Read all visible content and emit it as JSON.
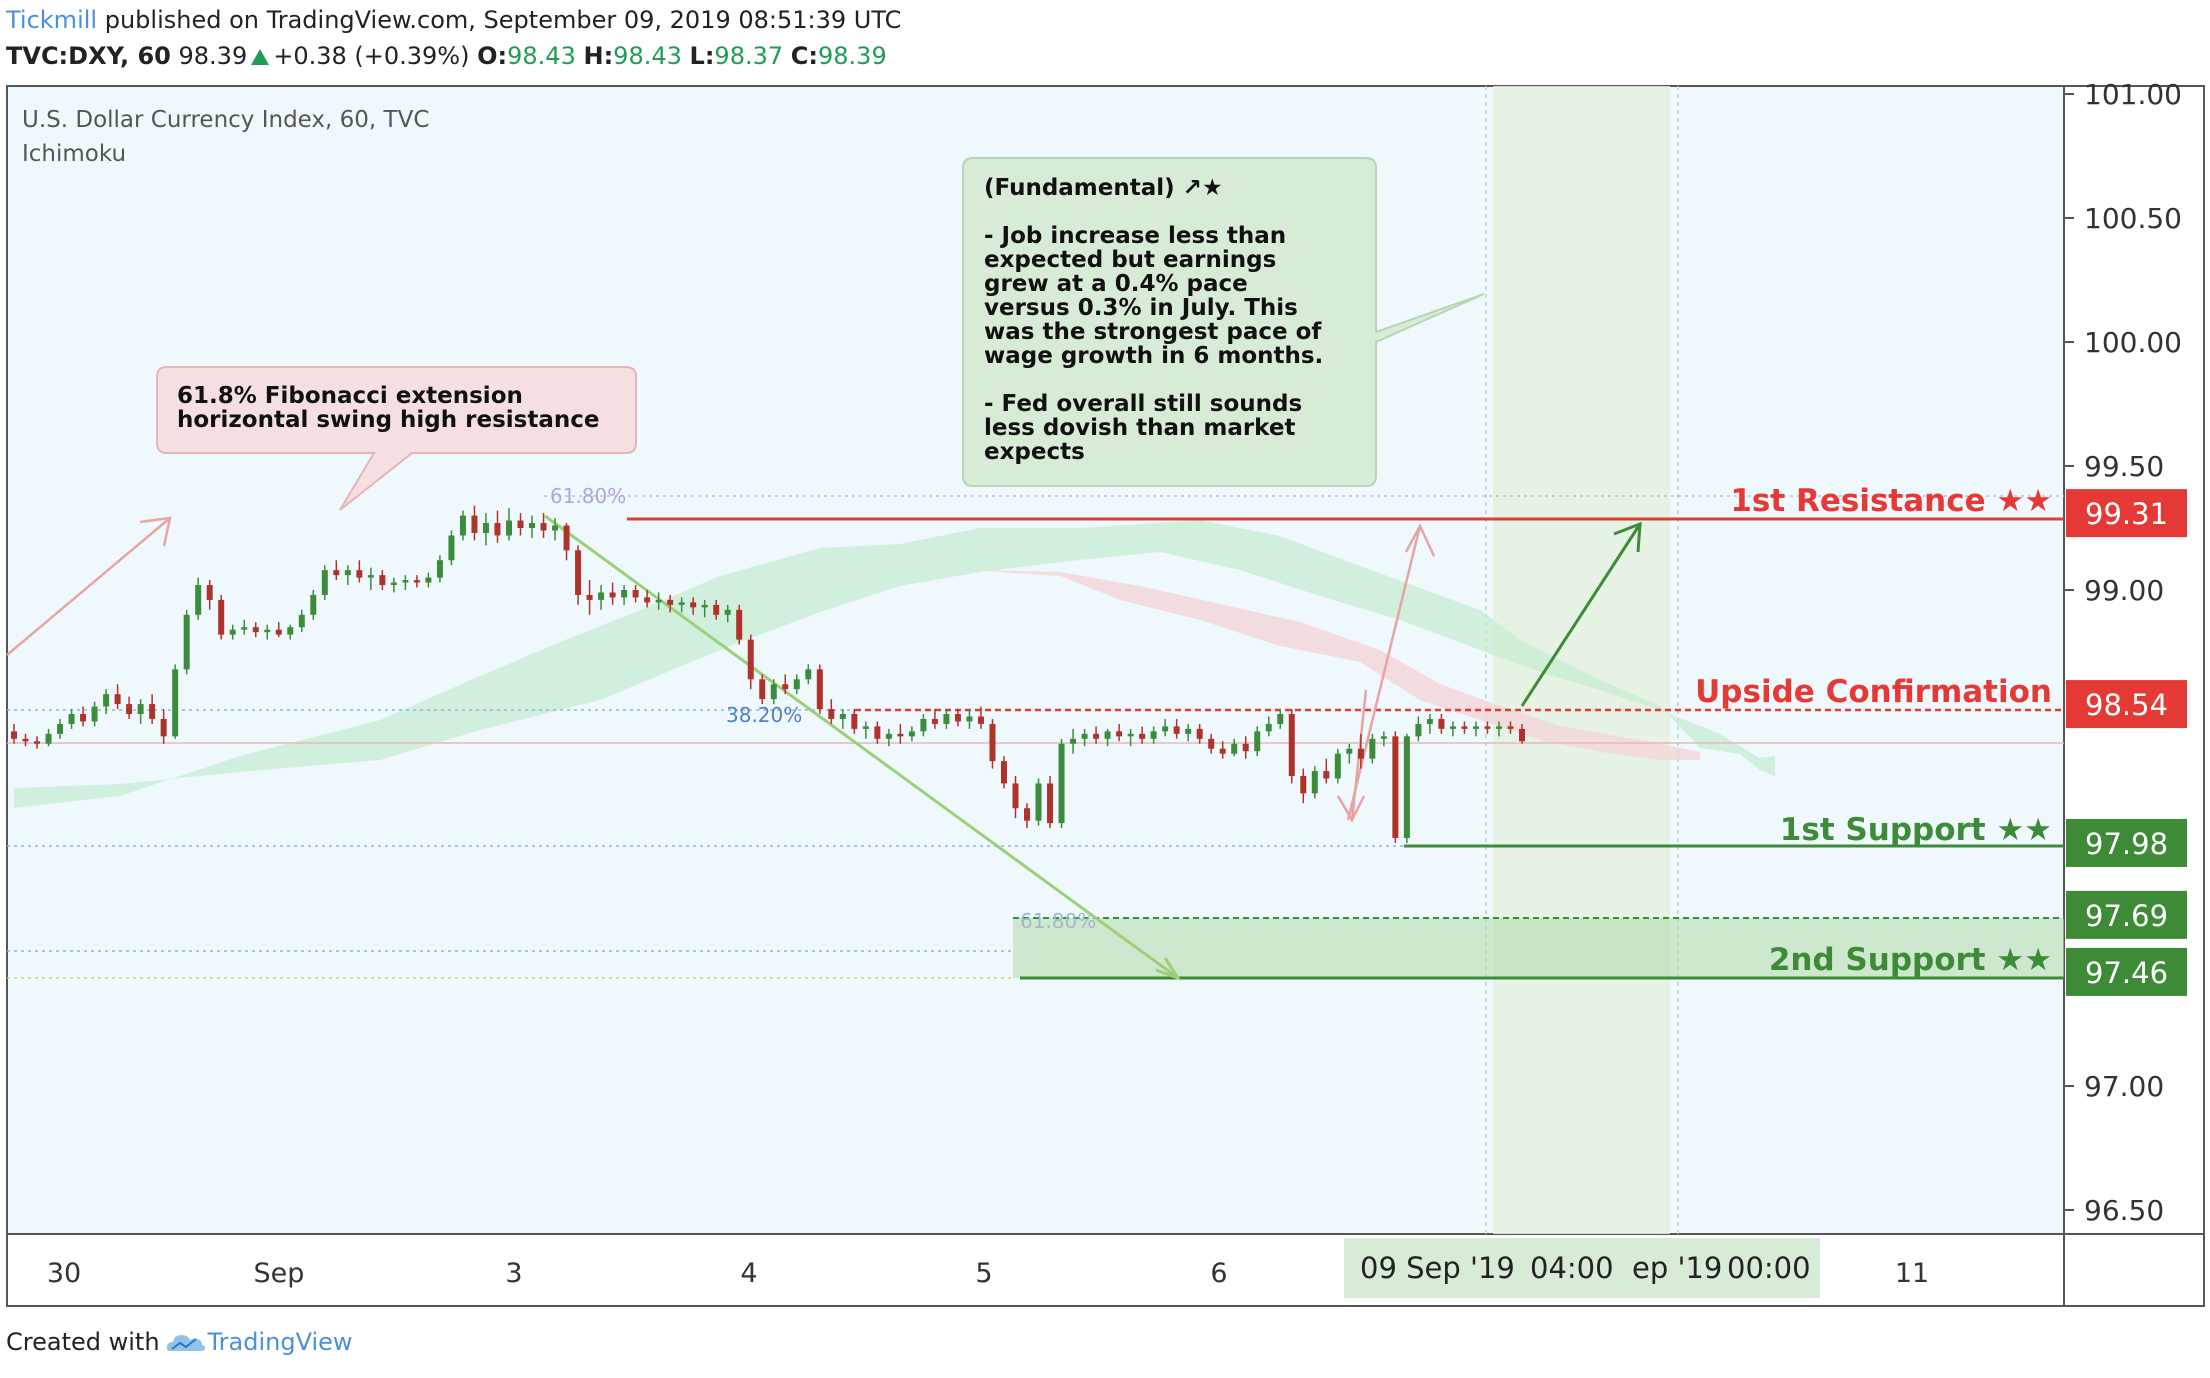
{
  "header": {
    "publisher": "Tickmill",
    "published_text": "published on TradingView.com, September 09, 2019 08:51:39 UTC",
    "symbol": "TVC:DXY, 60",
    "last": "98.39",
    "change": "+0.38 (+0.39%)",
    "o_label": "O:",
    "o_value": "98.43",
    "h_label": "H:",
    "h_value": "98.43",
    "l_label": "L:",
    "l_value": "98.37",
    "c_label": "C:",
    "c_value": "98.39"
  },
  "legend": {
    "title": "U.S. Dollar Currency Index, 60, TVC",
    "indicator": "Ichimoku"
  },
  "footer": {
    "created_with": "Created with",
    "brand": "TradingView"
  },
  "colors": {
    "background": "#eff9fd",
    "up_candle": "#3c8c3c",
    "down_candle": "#b0332b",
    "resistance": "#e53935",
    "support": "#3d8b37",
    "fib_line": "#9ccf78",
    "cloud_green": "#c5ecd2",
    "cloud_red": "#f4d5d8"
  },
  "chart_data": {
    "type": "candlestick",
    "title": "U.S. Dollar Currency Index, 60, TVC",
    "y_axis": {
      "min": 96.5,
      "max": 101.0,
      "ticks": [
        "101.00",
        "100.50",
        "100.00",
        "99.50",
        "99.00",
        "97.00",
        "96.50"
      ],
      "side": "right"
    },
    "x_axis": {
      "ticks": [
        "30",
        "Sep",
        "3",
        "4",
        "5",
        "6",
        "11"
      ],
      "cursor_labels": [
        "09 Sep '19",
        "04:00",
        "ep '19",
        "00:00"
      ]
    },
    "price_tags": [
      {
        "value": 99.31,
        "text": "99.31",
        "color": "#e53935"
      },
      {
        "value": 98.54,
        "text": "98.54",
        "color": "#e53935"
      },
      {
        "value": 97.98,
        "text": "97.98",
        "color": "#3d8b37"
      },
      {
        "value": 97.69,
        "text": "97.69",
        "color": "#3d8b37"
      },
      {
        "value": 97.46,
        "text": "97.46",
        "color": "#3d8b37"
      }
    ],
    "levels": [
      {
        "label": "1st Resistance ★★",
        "value": 99.31,
        "color": "#e53935"
      },
      {
        "label": "Upside Confirmation",
        "value": 98.54,
        "color": "#e53935"
      },
      {
        "label": "1st Support ★★",
        "value": 97.98,
        "color": "#3d8b37"
      },
      {
        "label": "2nd Support ★★",
        "value": 97.46,
        "color": "#3d8b37"
      }
    ],
    "fib_labels": [
      "61.80%",
      "38.20%",
      "61.80%"
    ],
    "callouts": {
      "fib": [
        "61.8% Fibonacci extension",
        "horizontal swing high resistance"
      ],
      "fundamental": [
        "(Fundamental) ↗★",
        "",
        "- Job increase less than",
        "expected but earnings",
        "grew at a 0.4% pace",
        "versus 0.3% in July. This",
        "was the strongest pace of",
        "wage growth in 6 months.",
        "",
        "- Fed overall still sounds",
        "less dovish than market",
        "expects"
      ]
    },
    "candles": [
      [
        98.43,
        98.46,
        98.38,
        98.4
      ],
      [
        98.4,
        98.42,
        98.37,
        98.39
      ],
      [
        98.39,
        98.41,
        98.36,
        98.38
      ],
      [
        98.38,
        98.44,
        98.37,
        98.42
      ],
      [
        98.42,
        98.48,
        98.4,
        98.46
      ],
      [
        98.46,
        98.52,
        98.44,
        98.5
      ],
      [
        98.5,
        98.53,
        98.45,
        98.47
      ],
      [
        98.47,
        98.55,
        98.45,
        98.53
      ],
      [
        98.53,
        98.6,
        98.5,
        98.58
      ],
      [
        98.58,
        98.62,
        98.52,
        98.54
      ],
      [
        98.54,
        98.57,
        98.48,
        98.5
      ],
      [
        98.5,
        98.56,
        98.46,
        98.54
      ],
      [
        98.54,
        98.58,
        98.46,
        98.48
      ],
      [
        98.48,
        98.52,
        98.38,
        98.41
      ],
      [
        98.41,
        98.7,
        98.4,
        98.68
      ],
      [
        98.68,
        98.92,
        98.66,
        98.9
      ],
      [
        98.9,
        99.05,
        98.88,
        99.02
      ],
      [
        99.02,
        99.04,
        98.92,
        98.96
      ],
      [
        98.96,
        98.98,
        98.8,
        98.82
      ],
      [
        98.82,
        98.86,
        98.8,
        98.84
      ],
      [
        98.84,
        98.88,
        98.82,
        98.85
      ],
      [
        98.85,
        98.87,
        98.81,
        98.83
      ],
      [
        98.83,
        98.86,
        98.8,
        98.84
      ],
      [
        98.84,
        98.87,
        98.81,
        98.82
      ],
      [
        98.82,
        98.86,
        98.8,
        98.85
      ],
      [
        98.85,
        98.92,
        98.83,
        98.9
      ],
      [
        98.9,
        99.0,
        98.88,
        98.98
      ],
      [
        98.98,
        99.1,
        98.96,
        99.08
      ],
      [
        99.08,
        99.12,
        99.04,
        99.06
      ],
      [
        99.06,
        99.1,
        99.02,
        99.08
      ],
      [
        99.08,
        99.12,
        99.03,
        99.05
      ],
      [
        99.05,
        99.09,
        99.0,
        99.06
      ],
      [
        99.06,
        99.08,
        99.0,
        99.02
      ],
      [
        99.02,
        99.05,
        98.99,
        99.03
      ],
      [
        99.03,
        99.06,
        99.0,
        99.04
      ],
      [
        99.04,
        99.06,
        99.01,
        99.03
      ],
      [
        99.03,
        99.07,
        99.01,
        99.05
      ],
      [
        99.05,
        99.14,
        99.03,
        99.12
      ],
      [
        99.12,
        99.24,
        99.1,
        99.22
      ],
      [
        99.22,
        99.32,
        99.2,
        99.3
      ],
      [
        99.3,
        99.34,
        99.2,
        99.23
      ],
      [
        99.23,
        99.31,
        99.18,
        99.27
      ],
      [
        99.27,
        99.32,
        99.19,
        99.22
      ],
      [
        99.22,
        99.33,
        99.2,
        99.28
      ],
      [
        99.28,
        99.31,
        99.22,
        99.25
      ],
      [
        99.25,
        99.3,
        99.21,
        99.27
      ],
      [
        99.27,
        99.31,
        99.21,
        99.24
      ],
      [
        99.24,
        99.29,
        99.2,
        99.26
      ],
      [
        99.26,
        99.27,
        99.12,
        99.16
      ],
      [
        99.16,
        99.18,
        98.94,
        98.98
      ],
      [
        98.98,
        99.04,
        98.9,
        98.96
      ],
      [
        98.96,
        99.02,
        98.92,
        98.99
      ],
      [
        98.99,
        99.03,
        98.94,
        98.97
      ],
      [
        98.97,
        99.02,
        98.94,
        99.0
      ],
      [
        99.0,
        99.02,
        98.95,
        98.97
      ],
      [
        98.97,
        99.0,
        98.93,
        98.95
      ],
      [
        98.95,
        98.99,
        98.92,
        98.96
      ],
      [
        98.96,
        98.98,
        98.91,
        98.94
      ],
      [
        98.94,
        98.97,
        98.91,
        98.95
      ],
      [
        98.95,
        98.97,
        98.9,
        98.93
      ],
      [
        98.93,
        98.96,
        98.89,
        98.94
      ],
      [
        98.94,
        98.96,
        98.88,
        98.9
      ],
      [
        98.9,
        98.94,
        98.87,
        98.92
      ],
      [
        98.92,
        98.94,
        98.78,
        98.8
      ],
      [
        98.8,
        98.82,
        98.6,
        98.64
      ],
      [
        98.64,
        98.66,
        98.54,
        98.56
      ],
      [
        98.56,
        98.64,
        98.54,
        98.62
      ],
      [
        98.62,
        98.66,
        98.58,
        98.6
      ],
      [
        98.6,
        98.66,
        98.58,
        98.64
      ],
      [
        98.64,
        98.7,
        98.62,
        98.68
      ],
      [
        98.68,
        98.7,
        98.5,
        98.52
      ],
      [
        98.52,
        98.56,
        98.46,
        98.48
      ],
      [
        98.48,
        98.52,
        98.44,
        98.5
      ],
      [
        98.5,
        98.52,
        98.42,
        98.44
      ],
      [
        98.44,
        98.47,
        98.4,
        98.45
      ],
      [
        98.45,
        98.47,
        98.38,
        98.4
      ],
      [
        98.4,
        98.44,
        98.37,
        98.42
      ],
      [
        98.42,
        98.46,
        98.38,
        98.41
      ],
      [
        98.41,
        98.45,
        98.39,
        98.43
      ],
      [
        98.43,
        98.5,
        98.41,
        98.48
      ],
      [
        98.48,
        98.52,
        98.44,
        98.46
      ],
      [
        98.46,
        98.52,
        98.44,
        98.5
      ],
      [
        98.5,
        98.52,
        98.45,
        98.47
      ],
      [
        98.47,
        98.52,
        98.44,
        98.49
      ],
      [
        98.49,
        98.53,
        98.44,
        98.46
      ],
      [
        98.46,
        98.48,
        98.28,
        98.31
      ],
      [
        98.31,
        98.33,
        98.2,
        98.22
      ],
      [
        98.22,
        98.25,
        98.08,
        98.12
      ],
      [
        98.12,
        98.14,
        98.04,
        98.07
      ],
      [
        98.07,
        98.24,
        98.05,
        98.22
      ],
      [
        98.22,
        98.25,
        98.04,
        98.06
      ],
      [
        98.06,
        98.4,
        98.04,
        98.38
      ],
      [
        98.38,
        98.44,
        98.34,
        98.4
      ],
      [
        98.4,
        98.44,
        98.37,
        98.42
      ],
      [
        98.42,
        98.45,
        98.38,
        98.4
      ],
      [
        98.4,
        98.44,
        98.37,
        98.43
      ],
      [
        98.43,
        98.46,
        98.39,
        98.41
      ],
      [
        98.41,
        98.44,
        98.37,
        98.42
      ],
      [
        98.42,
        98.45,
        98.38,
        98.4
      ],
      [
        98.4,
        98.45,
        98.38,
        98.43
      ],
      [
        98.43,
        98.48,
        98.41,
        98.45
      ],
      [
        98.45,
        98.48,
        98.4,
        98.42
      ],
      [
        98.42,
        98.46,
        98.39,
        98.44
      ],
      [
        98.44,
        98.46,
        98.38,
        98.4
      ],
      [
        98.4,
        98.42,
        98.34,
        98.36
      ],
      [
        98.36,
        98.39,
        98.32,
        98.34
      ],
      [
        98.34,
        98.4,
        98.33,
        98.38
      ],
      [
        98.38,
        98.41,
        98.32,
        98.35
      ],
      [
        98.35,
        98.45,
        98.33,
        98.43
      ],
      [
        98.43,
        98.49,
        98.41,
        98.46
      ],
      [
        98.46,
        98.52,
        98.44,
        98.5
      ],
      [
        98.5,
        98.52,
        98.22,
        98.25
      ],
      [
        98.25,
        98.28,
        98.14,
        98.18
      ],
      [
        98.18,
        98.29,
        98.16,
        98.27
      ],
      [
        98.27,
        98.32,
        98.22,
        98.24
      ],
      [
        98.24,
        98.36,
        98.22,
        98.34
      ],
      [
        98.34,
        98.38,
        98.3,
        98.36
      ],
      [
        98.36,
        98.42,
        98.28,
        98.32
      ],
      [
        98.32,
        98.42,
        98.3,
        98.4
      ],
      [
        98.4,
        98.43,
        98.37,
        98.41
      ],
      [
        98.41,
        98.43,
        97.98,
        98.0
      ],
      [
        98.0,
        98.42,
        97.98,
        98.41
      ],
      [
        98.41,
        98.49,
        98.39,
        98.46
      ],
      [
        98.46,
        98.5,
        98.42,
        98.48
      ],
      [
        98.48,
        98.5,
        98.42,
        98.44
      ],
      [
        98.44,
        98.47,
        98.41,
        98.45
      ],
      [
        98.45,
        98.47,
        98.42,
        98.44
      ],
      [
        98.44,
        98.47,
        98.41,
        98.45
      ],
      [
        98.45,
        98.47,
        98.42,
        98.44
      ],
      [
        98.44,
        98.47,
        98.41,
        98.45
      ],
      [
        98.45,
        98.47,
        98.42,
        98.44
      ],
      [
        98.44,
        98.46,
        98.38,
        98.39
      ]
    ]
  }
}
